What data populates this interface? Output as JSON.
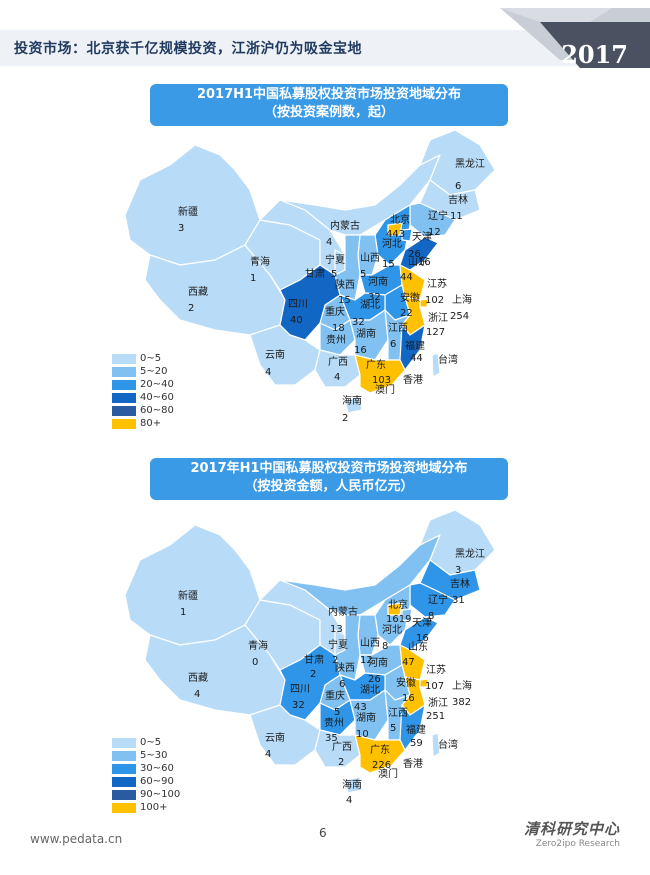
{
  "header": {
    "title": "投资市场：北京获千亿规模投资，江浙沪仍为吸金宝地",
    "year": "2017"
  },
  "colors": {
    "c1": "#b8dcf7",
    "c2": "#80c1f2",
    "c3": "#2f95e8",
    "c4": "#1266c4",
    "c5": "#2a5aa0",
    "c6": "#ffc000"
  },
  "map1": {
    "title": "2017H1中国私募股权投资市场投资地域分布",
    "subtitle": "（按投资案例数，起）",
    "legend": [
      "0~5",
      "5~20",
      "20~40",
      "40~60",
      "60~80",
      "80+"
    ],
    "provinces": {
      "heilongjiang": {
        "name": "黑龙江",
        "value": "6"
      },
      "jilin": {
        "name": "吉林",
        "value": ""
      },
      "liaoning": {
        "name": "辽宁",
        "value": "11"
      },
      "liaoning_extra": "12",
      "neimenggu": {
        "name": "内蒙古",
        "value": "4"
      },
      "beijing": {
        "name": "北京",
        "value": "443"
      },
      "tianjin": {
        "name": "天津",
        "value": ""
      },
      "hebei": {
        "name": "河北",
        "value": "15"
      },
      "shanxi": {
        "name": "山西",
        "value": "5"
      },
      "shandong": {
        "name": "山东",
        "value": "44"
      },
      "xinjiang": {
        "name": "新疆",
        "value": "3"
      },
      "qinghai": {
        "name": "青海",
        "value": "1"
      },
      "xizang": {
        "name": "西藏",
        "value": "2"
      },
      "gansu": {
        "name": "甘肃",
        "value": "5"
      },
      "ningxia": {
        "name": "宁夏",
        "value": ""
      },
      "shaanxi": {
        "name": "陕西",
        "value": "15"
      },
      "henan": {
        "name": "河南",
        "value": "32"
      },
      "jiangsu": {
        "name": "江苏",
        "value": "102"
      },
      "shanghai": {
        "name": "上海",
        "value": "254"
      },
      "anhui": {
        "name": "安徽",
        "value": "22"
      },
      "zhejiang": {
        "name": "浙江",
        "value": "127"
      },
      "sichuan": {
        "name": "四川",
        "value": "40"
      },
      "chongqing": {
        "name": "重庆",
        "value": "18"
      },
      "hubei": {
        "name": "湖北",
        "value": "32"
      },
      "hunan": {
        "name": "湖南",
        "value": "16"
      },
      "jiangxi": {
        "name": "江西",
        "value": "6"
      },
      "fujian": {
        "name": "福建",
        "value": "44"
      },
      "guizhou": {
        "name": "贵州",
        "value": ""
      },
      "yunnan": {
        "name": "云南",
        "value": "4"
      },
      "guangxi": {
        "name": "广西",
        "value": "4"
      },
      "guangdong": {
        "name": "广东",
        "value": "103"
      },
      "taiwan": {
        "name": "台湾",
        "value": ""
      },
      "xianggang": {
        "name": "香港",
        "value": ""
      },
      "aomen": {
        "name": "澳门",
        "value": ""
      },
      "hainan": {
        "name": "海南",
        "value": "2"
      },
      "misc_26": "26",
      "misc_16": "16"
    }
  },
  "map2": {
    "title": "2017年H1中国私募股权投资市场投资地域分布",
    "subtitle": "（按投资金额，人民币亿元）",
    "legend": [
      "0~5",
      "5~30",
      "30~60",
      "60~90",
      "90~100",
      "100+"
    ],
    "provinces": {
      "heilongjiang": {
        "name": "黑龙江",
        "value": "3"
      },
      "jilin": {
        "name": "吉林",
        "value": ""
      },
      "liaoning": {
        "name": "辽宁",
        "value": "31"
      },
      "liaoning_extra": "8",
      "neimenggu": {
        "name": "内蒙古",
        "value": "13"
      },
      "beijing": {
        "name": "北京",
        "value": "1619"
      },
      "tianjin": {
        "name": "天津",
        "value": ""
      },
      "hebei": {
        "name": "河北",
        "value": "8"
      },
      "shanxi": {
        "name": "山西",
        "value": "12"
      },
      "shandong": {
        "name": "山东",
        "value": "47"
      },
      "xinjiang": {
        "name": "新疆",
        "value": "1"
      },
      "qinghai": {
        "name": "青海",
        "value": "0"
      },
      "xizang": {
        "name": "西藏",
        "value": "4"
      },
      "gansu": {
        "name": "甘肃",
        "value": "2"
      },
      "ningxia": {
        "name": "宁夏",
        "value": "2"
      },
      "shaanxi": {
        "name": "陕西",
        "value": "6"
      },
      "henan": {
        "name": "河南",
        "value": "26"
      },
      "jiangsu": {
        "name": "江苏",
        "value": "107"
      },
      "shanghai": {
        "name": "上海",
        "value": "382"
      },
      "anhui": {
        "name": "安徽",
        "value": "16"
      },
      "zhejiang": {
        "name": "浙江",
        "value": "251"
      },
      "sichuan": {
        "name": "四川",
        "value": "32"
      },
      "chongqing": {
        "name": "重庆",
        "value": "5"
      },
      "hubei": {
        "name": "湖北",
        "value": "43"
      },
      "hunan": {
        "name": "湖南",
        "value": "10"
      },
      "jiangxi": {
        "name": "江西",
        "value": "5"
      },
      "fujian": {
        "name": "福建",
        "value": "59"
      },
      "guizhou": {
        "name": "贵州",
        "value": "35"
      },
      "yunnan": {
        "name": "云南",
        "value": "4"
      },
      "guangxi": {
        "name": "广西",
        "value": "2"
      },
      "guangdong": {
        "name": "广东",
        "value": "226"
      },
      "taiwan": {
        "name": "台湾",
        "value": ""
      },
      "xianggang": {
        "name": "香港",
        "value": ""
      },
      "aomen": {
        "name": "澳门",
        "value": ""
      },
      "hainan": {
        "name": "海南",
        "value": "4"
      },
      "misc_16": "16"
    }
  },
  "footer": {
    "url": "www.pedata.cn",
    "page": "6",
    "brand_cn": "清科研究中心",
    "brand_en": "Zero2ipo Research"
  }
}
